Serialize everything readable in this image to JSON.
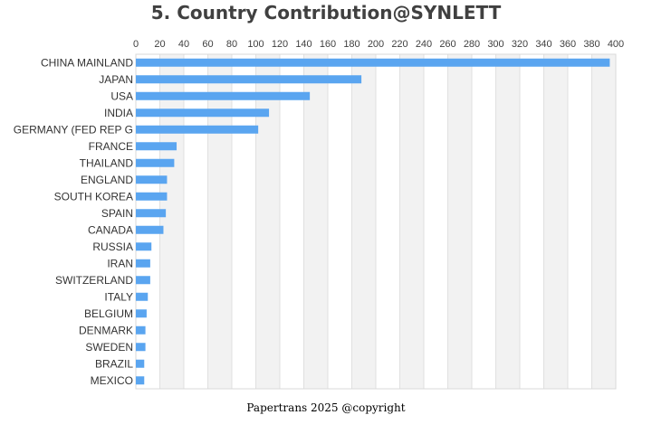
{
  "chart_data": {
    "type": "bar",
    "orientation": "horizontal",
    "title": "5. Country Contribution@SYNLETT",
    "footer": "Papertrans 2025 @copyright",
    "xlabel": "",
    "ylabel": "",
    "xlim": [
      0,
      400
    ],
    "xticks": [
      0,
      20,
      40,
      60,
      80,
      100,
      120,
      140,
      160,
      180,
      200,
      220,
      240,
      260,
      280,
      300,
      320,
      340,
      360,
      380,
      400
    ],
    "xtick_labels": [
      "0",
      "20",
      "40",
      "60",
      "80",
      "100",
      "120",
      "140",
      "160",
      "180",
      "200",
      "220",
      "240",
      "260",
      "280",
      "300",
      "320",
      "340",
      "360",
      "380",
      "400"
    ],
    "axis_position": "top",
    "grid": true,
    "bar_color": "#5aa5f0",
    "band_color": "#f2f2f2",
    "categories": [
      "CHINA MAINLAND",
      "JAPAN",
      "USA",
      "INDIA",
      "GERMANY (FED REP G",
      "FRANCE",
      "THAILAND",
      "ENGLAND",
      "SOUTH KOREA",
      "SPAIN",
      "CANADA",
      "RUSSIA",
      "IRAN",
      "SWITZERLAND",
      "ITALY",
      "BELGIUM",
      "DENMARK",
      "SWEDEN",
      "BRAZIL",
      "MEXICO"
    ],
    "values": [
      395,
      188,
      145,
      111,
      102,
      34,
      32,
      26,
      26,
      25,
      23,
      13,
      12,
      12,
      10,
      9,
      8,
      8,
      7,
      7
    ]
  }
}
